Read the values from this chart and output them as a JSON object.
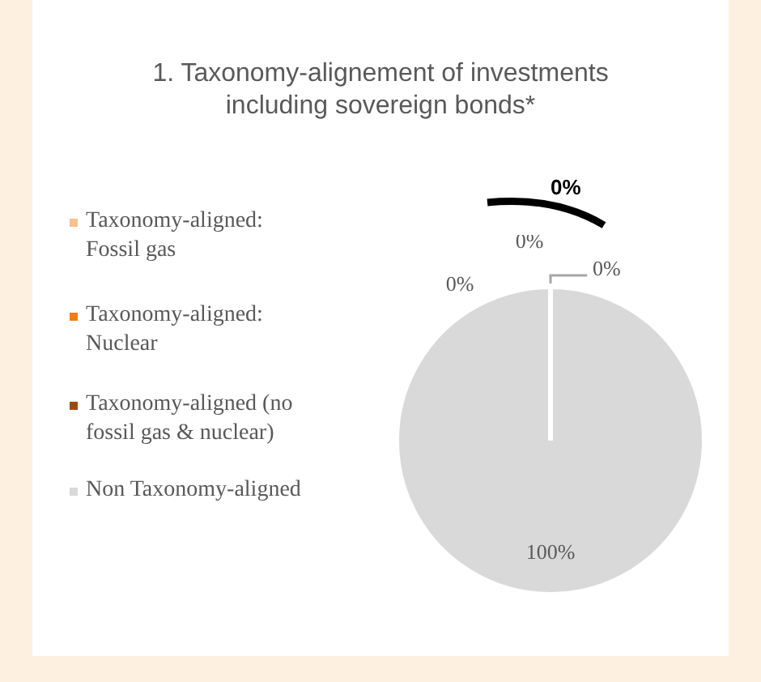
{
  "chart_data": {
    "type": "pie",
    "title": "1. Taxonomy-alignement of investments including sovereign bonds*",
    "categories": [
      "Taxonomy-aligned: Fossil gas",
      "Taxonomy-aligned: Nuclear",
      "Taxonomy-aligned (no fossil gas & nuclear)",
      "Non Taxonomy-aligned"
    ],
    "values": [
      0,
      0,
      0,
      100
    ],
    "colors": [
      "#f9c08f",
      "#ef7d1a",
      "#9b4a0c",
      "#d9d9d9"
    ],
    "value_labels": [
      "0%",
      "0%",
      "0%",
      "100%"
    ],
    "annotations": [
      "0%"
    ],
    "legend": "left"
  }
}
